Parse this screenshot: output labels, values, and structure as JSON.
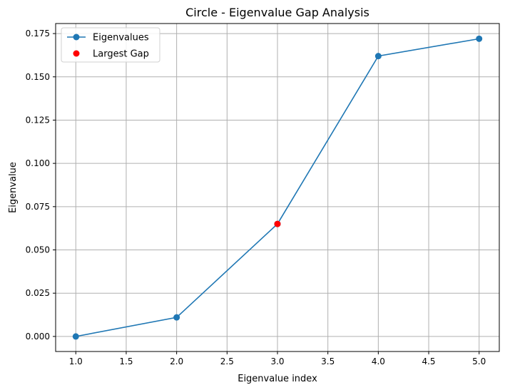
{
  "chart_data": {
    "type": "line",
    "title": "Circle - Eigenvalue Gap Analysis",
    "xlabel": "Eigenvalue index",
    "ylabel": "Eigenvalue",
    "xlim": [
      0.8,
      5.2
    ],
    "ylim": [
      -0.0087,
      0.1808
    ],
    "xticks": [
      1.0,
      1.5,
      2.0,
      2.5,
      3.0,
      3.5,
      4.0,
      4.5,
      5.0
    ],
    "xtick_labels": [
      "1.0",
      "1.5",
      "2.0",
      "2.5",
      "3.0",
      "3.5",
      "4.0",
      "4.5",
      "5.0"
    ],
    "yticks": [
      0.0,
      0.025,
      0.05,
      0.075,
      0.1,
      0.125,
      0.15,
      0.175
    ],
    "ytick_labels": [
      "0.000",
      "0.025",
      "0.050",
      "0.075",
      "0.100",
      "0.125",
      "0.150",
      "0.175"
    ],
    "grid": true,
    "legend_position": "top-left",
    "series": [
      {
        "name": "Eigenvalues",
        "style": "line-marker",
        "color": "#1f77b4",
        "x": [
          1,
          2,
          3,
          4,
          5
        ],
        "y": [
          0.0,
          0.011,
          0.065,
          0.162,
          0.172
        ]
      },
      {
        "name": "Largest Gap",
        "style": "marker",
        "color": "#ff0000",
        "x": [
          3
        ],
        "y": [
          0.065
        ]
      }
    ]
  }
}
